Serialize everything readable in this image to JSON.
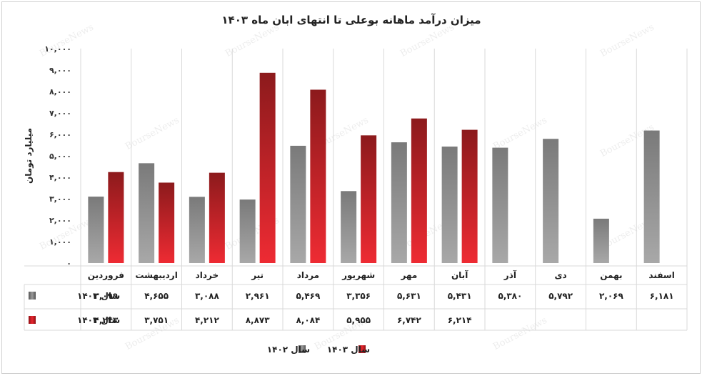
{
  "chart_data": {
    "type": "bar",
    "title": "میزان درآمد ماهانه بوعلی تا انتهای ابان ماه ۱۴۰۳",
    "ylabel": "میلیارد تومان",
    "xlabel": "",
    "ylim": [
      0,
      10000
    ],
    "yticks": [
      {
        "value": 0,
        "label": "۰"
      },
      {
        "value": 1000,
        "label": "۱,۰۰۰"
      },
      {
        "value": 2000,
        "label": "۲,۰۰۰"
      },
      {
        "value": 3000,
        "label": "۳,۰۰۰"
      },
      {
        "value": 4000,
        "label": "۴,۰۰۰"
      },
      {
        "value": 5000,
        "label": "۵,۰۰۰"
      },
      {
        "value": 6000,
        "label": "۶,۰۰۰"
      },
      {
        "value": 7000,
        "label": "۷,۰۰۰"
      },
      {
        "value": 8000,
        "label": "۸,۰۰۰"
      },
      {
        "value": 9000,
        "label": "۹,۰۰۰"
      },
      {
        "value": 10000,
        "label": "۱۰,۰۰۰"
      }
    ],
    "grid": false,
    "legend_position": "bottom",
    "categories": [
      "فروردین",
      "اردیبهشت",
      "خرداد",
      "تیر",
      "مرداد",
      "شهریور",
      "مهر",
      "آبان",
      "آذر",
      "دی",
      "بهمن",
      "اسفند"
    ],
    "series": [
      {
        "name": "سال ۱۴۰۲",
        "color": "#7a7a7a",
        "values": [
          3099,
          4655,
          3088,
          2961,
          5469,
          3356,
          5631,
          5431,
          5380,
          5792,
          2069,
          6181
        ],
        "labels": [
          "۳,۰۹۹",
          "۴,۶۵۵",
          "۳,۰۸۸",
          "۲,۹۶۱",
          "۵,۴۶۹",
          "۳,۳۵۶",
          "۵,۶۳۱",
          "۵,۴۳۱",
          "۵,۳۸۰",
          "۵,۷۹۲",
          "۲,۰۶۹",
          "۶,۱۸۱"
        ]
      },
      {
        "name": "سال ۱۴۰۳",
        "color": "#c81e24",
        "values": [
          4243,
          3751,
          4212,
          8873,
          8084,
          5955,
          6742,
          6214,
          null,
          null,
          null,
          null
        ],
        "labels": [
          "۴,۲۴۳",
          "۳,۷۵۱",
          "۴,۲۱۲",
          "۸,۸۷۳",
          "۸,۰۸۴",
          "۵,۹۵۵",
          "۶,۷۴۲",
          "۶,۲۱۴",
          "",
          "",
          "",
          ""
        ]
      }
    ],
    "watermark": "BourseNews"
  }
}
